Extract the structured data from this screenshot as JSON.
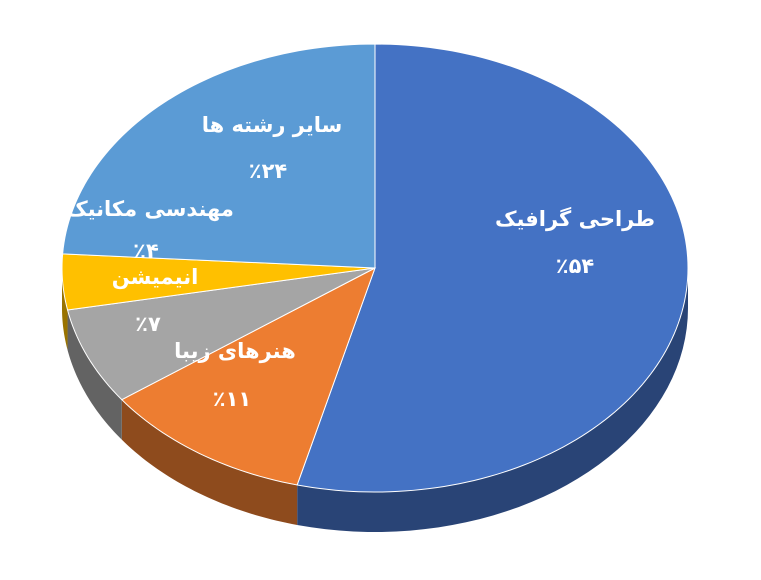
{
  "chart_data": {
    "type": "pie",
    "categories": [
      "طراحی گرافیک",
      "هنرهای زیبا",
      "انیمیشن",
      "مهندسی مکانیک",
      "سایر رشته ها"
    ],
    "values": [
      54,
      11,
      7,
      4,
      24
    ],
    "value_labels": [
      "٪۵۴",
      "٪۱۱",
      "٪۷",
      "٪۴",
      "٪۲۴"
    ],
    "colors": [
      "#4472c4",
      "#ed7d31",
      "#a5a5a5",
      "#ffc000",
      "#5b9bd5"
    ]
  }
}
